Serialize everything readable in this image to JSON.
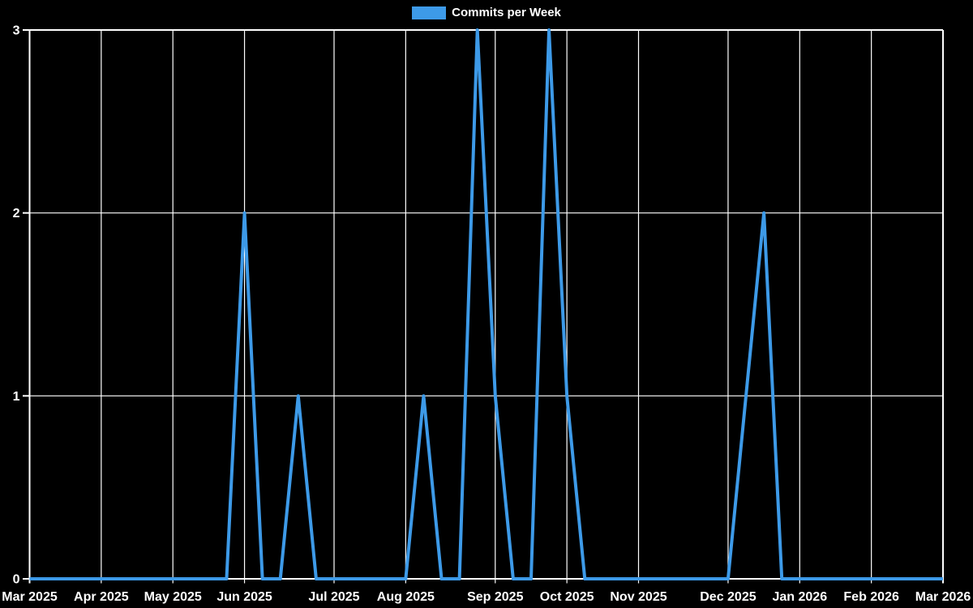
{
  "legend": {
    "label": "Commits per Week"
  },
  "colors": {
    "background": "#000000",
    "grid": "#ffffff",
    "text": "#ffffff",
    "line": "#3D9AE8"
  },
  "chart_data": {
    "type": "line",
    "title": "Commits per Week",
    "legend_position": "top-center",
    "grid": true,
    "background": "#000000",
    "grid_color": "#ffffff",
    "text_color": "#ffffff",
    "x_axis": {
      "unit": "week",
      "weeks_total": 52,
      "start_label": "Mar 2025",
      "end_label": "Mar 2026",
      "ticks": [
        {
          "week": 0,
          "label": "Mar 2025"
        },
        {
          "week": 4,
          "label": "Apr 2025"
        },
        {
          "week": 8,
          "label": "May 2025"
        },
        {
          "week": 12,
          "label": "Jun 2025"
        },
        {
          "week": 17,
          "label": "Jul 2025"
        },
        {
          "week": 21,
          "label": "Aug 2025"
        },
        {
          "week": 26,
          "label": "Sep 2025"
        },
        {
          "week": 30,
          "label": "Oct 2025"
        },
        {
          "week": 34,
          "label": "Nov 2025"
        },
        {
          "week": 39,
          "label": "Dec 2025"
        },
        {
          "week": 43,
          "label": "Jan 2026"
        },
        {
          "week": 47,
          "label": "Feb 2026"
        },
        {
          "week": 51,
          "label": "Mar 2026"
        }
      ]
    },
    "y_axis": {
      "ticks": [
        0,
        1,
        2,
        3
      ],
      "range": [
        0,
        3
      ]
    },
    "series": [
      {
        "name": "Commits per Week",
        "color": "#3D9AE8",
        "values": [
          0,
          0,
          0,
          0,
          0,
          0,
          0,
          0,
          0,
          0,
          0,
          0,
          2,
          0,
          0,
          1,
          0,
          0,
          0,
          0,
          0,
          0,
          1,
          0,
          0,
          3,
          1,
          0,
          0,
          3,
          1,
          0,
          0,
          0,
          0,
          0,
          0,
          0,
          0,
          0,
          1,
          2,
          0,
          0,
          0,
          0,
          0,
          0,
          0,
          0,
          0,
          0
        ]
      }
    ],
    "nonzero_points": [
      {
        "week_index": 12,
        "value": 2
      },
      {
        "week_index": 15,
        "value": 1
      },
      {
        "week_index": 22,
        "value": 1
      },
      {
        "week_index": 25,
        "value": 3
      },
      {
        "week_index": 26,
        "value": 1
      },
      {
        "week_index": 29,
        "value": 3
      },
      {
        "week_index": 30,
        "value": 1
      },
      {
        "week_index": 40,
        "value": 1
      },
      {
        "week_index": 41,
        "value": 2
      }
    ]
  }
}
